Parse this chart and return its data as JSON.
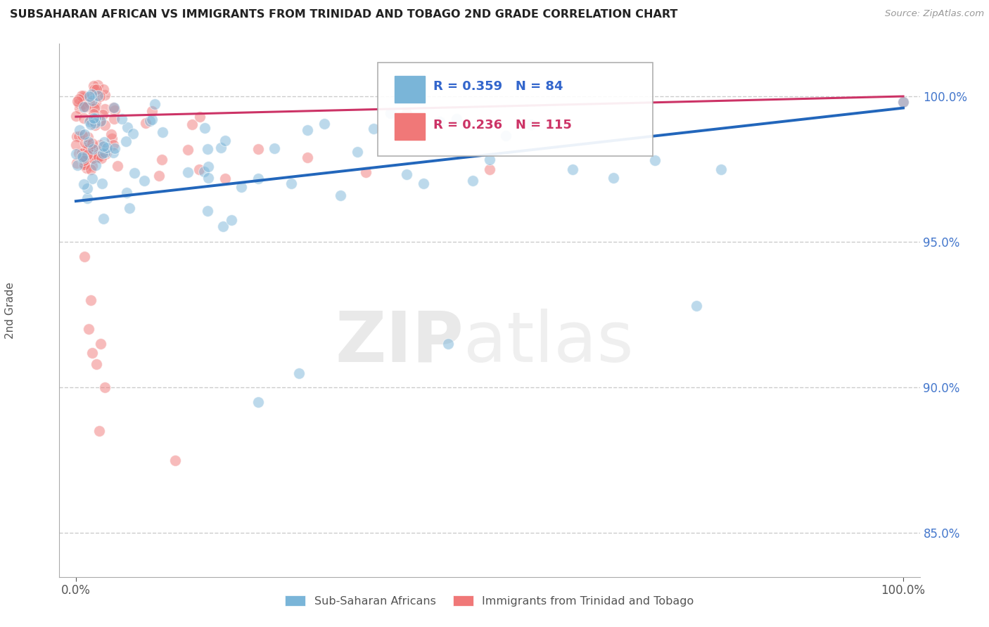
{
  "title": "SUBSAHARAN AFRICAN VS IMMIGRANTS FROM TRINIDAD AND TOBAGO 2ND GRADE CORRELATION CHART",
  "source": "Source: ZipAtlas.com",
  "ylabel": "2nd Grade",
  "xlim": [
    -2.0,
    102.0
  ],
  "ylim": [
    83.5,
    101.8
  ],
  "yticks": [
    85.0,
    90.0,
    95.0,
    100.0
  ],
  "ytick_labels": [
    "85.0%",
    "90.0%",
    "95.0%",
    "100.0%"
  ],
  "xtick_labels": [
    "0.0%",
    "100.0%"
  ],
  "xtick_pos": [
    0.0,
    100.0
  ],
  "blue_R": 0.359,
  "blue_N": 84,
  "pink_R": 0.236,
  "pink_N": 115,
  "blue_color": "#7ab5d8",
  "pink_color": "#f07878",
  "blue_line_color": "#2266bb",
  "pink_line_color": "#cc3366",
  "legend_blue_label": "Sub-Saharan Africans",
  "legend_pink_label": "Immigrants from Trinidad and Tobago",
  "watermark_zip": "ZIP",
  "watermark_atlas": "atlas",
  "background_color": "#ffffff",
  "grid_color": "#cccccc",
  "blue_trend_x0": 0,
  "blue_trend_y0": 96.4,
  "blue_trend_x1": 100,
  "blue_trend_y1": 99.6,
  "pink_trend_x0": 0,
  "pink_trend_y0": 99.3,
  "pink_trend_x1": 100,
  "pink_trend_y1": 100.0
}
